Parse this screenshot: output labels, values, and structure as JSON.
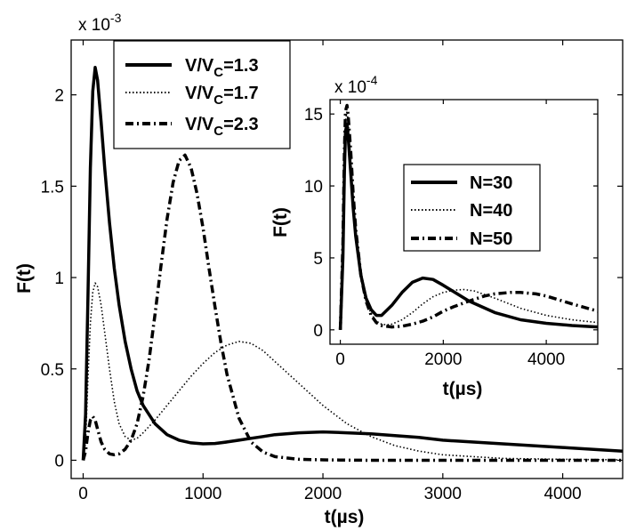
{
  "chart_data": [
    {
      "type": "line",
      "panel": "main",
      "title": "",
      "xlabel": "t(µs)",
      "ylabel": "F(t)",
      "exponent_label": "x 10",
      "exponent_power": "-3",
      "xlim": [
        -100,
        4500
      ],
      "ylim": [
        -0.1,
        2.3
      ],
      "xticks": [
        0,
        1000,
        2000,
        3000,
        4000
      ],
      "xtick_labels": [
        "0",
        "1000",
        "2000",
        "3000",
        "4000"
      ],
      "yticks": [
        0,
        0.5,
        1,
        1.5,
        2
      ],
      "ytick_labels": [
        "0",
        "0.5",
        "1",
        "1.5",
        "2"
      ],
      "legend_position": "top-left",
      "series": [
        {
          "name": "V/VC=1.3",
          "name_main": "V/V",
          "name_sub": "C",
          "name_tail": "=1.3",
          "style": "solid",
          "x": [
            0,
            20,
            40,
            60,
            80,
            100,
            120,
            150,
            180,
            220,
            260,
            300,
            350,
            400,
            450,
            500,
            600,
            700,
            800,
            900,
            1000,
            1100,
            1200,
            1300,
            1400,
            1500,
            1600,
            1800,
            2000,
            2200,
            2400,
            2600,
            2800,
            3000,
            3500,
            4000,
            4500
          ],
          "y": [
            0,
            0.25,
            0.9,
            1.6,
            2.02,
            2.15,
            2.08,
            1.85,
            1.6,
            1.3,
            1.05,
            0.85,
            0.65,
            0.5,
            0.38,
            0.3,
            0.2,
            0.14,
            0.11,
            0.095,
            0.09,
            0.092,
            0.1,
            0.11,
            0.12,
            0.13,
            0.14,
            0.15,
            0.155,
            0.15,
            0.145,
            0.135,
            0.125,
            0.11,
            0.09,
            0.07,
            0.05
          ]
        },
        {
          "name": "V/VC=1.7",
          "name_main": "V/V",
          "name_sub": "C",
          "name_tail": "=1.7",
          "style": "dotted",
          "x": [
            0,
            20,
            40,
            60,
            80,
            100,
            120,
            150,
            180,
            220,
            260,
            300,
            350,
            400,
            450,
            500,
            600,
            700,
            800,
            900,
            1000,
            1100,
            1200,
            1300,
            1400,
            1500,
            1600,
            1800,
            2000,
            2200,
            2400,
            2600,
            2800,
            3000,
            3500,
            4000,
            4500
          ],
          "y": [
            0,
            0.1,
            0.45,
            0.75,
            0.92,
            0.97,
            0.95,
            0.85,
            0.7,
            0.5,
            0.32,
            0.2,
            0.13,
            0.11,
            0.12,
            0.15,
            0.22,
            0.3,
            0.38,
            0.46,
            0.53,
            0.59,
            0.63,
            0.65,
            0.64,
            0.6,
            0.54,
            0.42,
            0.3,
            0.2,
            0.13,
            0.08,
            0.05,
            0.03,
            0.01,
            0.005,
            0.002
          ]
        },
        {
          "name": "V/VC=2.3",
          "name_main": "V/V",
          "name_sub": "C",
          "name_tail": "=2.3",
          "style": "dashdot",
          "x": [
            0,
            20,
            40,
            60,
            80,
            100,
            120,
            150,
            180,
            220,
            260,
            300,
            350,
            400,
            450,
            500,
            550,
            600,
            650,
            700,
            750,
            800,
            850,
            900,
            950,
            1000,
            1050,
            1100,
            1150,
            1200,
            1300,
            1400,
            1500,
            1600,
            1800,
            2000,
            2200,
            2400,
            2600,
            3000,
            4500
          ],
          "y": [
            0,
            0.05,
            0.15,
            0.22,
            0.24,
            0.22,
            0.17,
            0.1,
            0.06,
            0.035,
            0.03,
            0.035,
            0.06,
            0.11,
            0.2,
            0.35,
            0.55,
            0.8,
            1.07,
            1.32,
            1.52,
            1.64,
            1.67,
            1.6,
            1.46,
            1.27,
            1.05,
            0.84,
            0.64,
            0.47,
            0.23,
            0.1,
            0.045,
            0.02,
            0.005,
            0.002,
            0.001,
            0,
            0,
            0,
            0
          ]
        }
      ]
    },
    {
      "type": "line",
      "panel": "inset",
      "title": "",
      "xlabel": "t(µs)",
      "ylabel": "F(t)",
      "exponent_label": "x 10",
      "exponent_power": "-4",
      "xlim": [
        -200,
        5000
      ],
      "ylim": [
        -1,
        16
      ],
      "xticks": [
        0,
        2000,
        4000
      ],
      "xtick_labels": [
        "0",
        "2000",
        "4000"
      ],
      "yticks": [
        0,
        5,
        10,
        15
      ],
      "ytick_labels": [
        "0",
        "5",
        "10",
        "15"
      ],
      "legend_position": "center-right",
      "series": [
        {
          "name": "N=30",
          "style": "solid",
          "x": [
            0,
            50,
            80,
            100,
            130,
            150,
            200,
            250,
            300,
            400,
            500,
            600,
            700,
            800,
            1000,
            1200,
            1400,
            1600,
            1800,
            2000,
            2500,
            3000,
            3500,
            4000,
            4500,
            5000
          ],
          "y": [
            0,
            5,
            11,
            13.8,
            14.3,
            13.5,
            11,
            8.5,
            6.5,
            3.8,
            2.2,
            1.4,
            1.0,
            1.0,
            1.7,
            2.6,
            3.3,
            3.6,
            3.5,
            3.1,
            2.0,
            1.2,
            0.7,
            0.45,
            0.3,
            0.2
          ]
        },
        {
          "name": "N=40",
          "style": "dotted",
          "x": [
            0,
            50,
            80,
            100,
            130,
            150,
            200,
            250,
            300,
            400,
            500,
            600,
            700,
            800,
            900,
            1000,
            1200,
            1400,
            1600,
            1800,
            2000,
            2200,
            2400,
            2600,
            3000,
            3500,
            4000,
            4500,
            5000
          ],
          "y": [
            0,
            5.5,
            11.5,
            14.5,
            15.2,
            14.5,
            12,
            9,
            6.8,
            3.8,
            2.0,
            1.1,
            0.6,
            0.4,
            0.35,
            0.4,
            0.7,
            1.2,
            1.8,
            2.3,
            2.6,
            2.75,
            2.8,
            2.7,
            2.2,
            1.5,
            1.0,
            0.7,
            0.5
          ]
        },
        {
          "name": "N=50",
          "style": "dashdot",
          "x": [
            0,
            50,
            80,
            100,
            130,
            150,
            200,
            250,
            300,
            400,
            500,
            600,
            700,
            800,
            1000,
            1200,
            1400,
            1600,
            1800,
            2000,
            2200,
            2500,
            2800,
            3000,
            3300,
            3500,
            3800,
            4000,
            4500,
            5000
          ],
          "y": [
            0,
            6,
            12.5,
            15.2,
            15.6,
            15,
            12.5,
            9.5,
            7,
            3.8,
            2.0,
            1.0,
            0.5,
            0.3,
            0.2,
            0.25,
            0.4,
            0.6,
            0.9,
            1.3,
            1.6,
            2.0,
            2.35,
            2.5,
            2.6,
            2.6,
            2.5,
            2.35,
            1.8,
            1.3
          ]
        }
      ]
    }
  ]
}
